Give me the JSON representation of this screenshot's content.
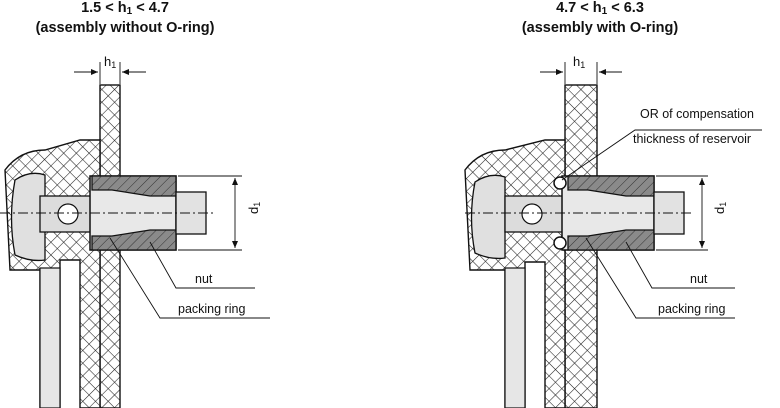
{
  "left": {
    "title_line1_a": "1.5 < h",
    "title_line1_sub": "1",
    "title_line1_b": " < 4.7",
    "title_line2": "(assembly without O-ring)",
    "h_label": "h",
    "h_sub": "1",
    "d_label": "d",
    "d_sub": "1",
    "nut_label": "nut",
    "packing_label": "packing ring"
  },
  "right": {
    "title_line1_a": "4.7 < h",
    "title_line1_sub": "1",
    "title_line1_b": " < 6.3",
    "title_line2": "(assembly with O-ring)",
    "h_label": "h",
    "h_sub": "1",
    "d_label": "d",
    "d_sub": "1",
    "or_label_line1": "OR of compensation",
    "or_label_line2": "thickness of reservoir",
    "nut_label": "nut",
    "packing_label": "packing ring"
  }
}
